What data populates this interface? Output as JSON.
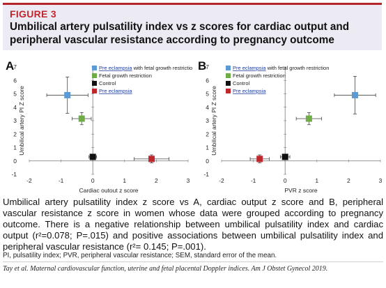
{
  "header": {
    "figure_label": "FIGURE 3",
    "title": "Umbilical artery pulsatility index vs z scores for cardiac output and peripheral vascular resistance according to pregnancy outcome"
  },
  "legend": [
    {
      "label": "Pre eclampsia with fetal growth restriction",
      "underlined_part": "Pre eclampsia",
      "rest": " with fetal growth restriction",
      "color": "#5b9bd5"
    },
    {
      "label": "Fetal growth restriction",
      "underlined_part": "",
      "rest": "Fetal growth restriction",
      "color": "#70ad47"
    },
    {
      "label": "Control",
      "underlined_part": "",
      "rest": "Control",
      "color": "#111111"
    },
    {
      "label": "Pre eclampsia",
      "underlined_part": "Pre eclampsia",
      "rest": "",
      "color": "#c0272d"
    }
  ],
  "chart_data": [
    {
      "panel": "A",
      "type": "scatter",
      "xlabel": "Cardiac outout z score",
      "ylabel": "Umbilical artery PI Z score",
      "xlim": [
        -2,
        3
      ],
      "ylim": [
        -1,
        7
      ],
      "xticks": [
        -2,
        -1,
        0,
        1,
        2,
        3
      ],
      "yticks": [
        -1,
        0,
        1,
        2,
        3,
        4,
        5,
        6,
        7
      ],
      "grid": false,
      "legend_position": "top-right",
      "series": [
        {
          "name": "Pre eclampsia with fetal growth restriction",
          "color": "#5b9bd5",
          "x": -0.8,
          "y": 4.9,
          "x_err": 0.65,
          "y_err": 1.35
        },
        {
          "name": "Fetal growth restriction",
          "color": "#70ad47",
          "x": -0.35,
          "y": 3.15,
          "x_err": 0.3,
          "y_err": 0.45
        },
        {
          "name": "Control",
          "color": "#111111",
          "x": 0.0,
          "y": 0.3,
          "x_err": 0.12,
          "y_err": 0.2
        },
        {
          "name": "Pre eclampsia",
          "color": "#c0272d",
          "x": 1.85,
          "y": 0.15,
          "x_err": 0.55,
          "y_err": 0.3
        }
      ]
    },
    {
      "panel": "B",
      "type": "scatter",
      "xlabel": "PVR z score",
      "ylabel": "Umbilical artery PI Z score",
      "xlim": [
        -2,
        3
      ],
      "ylim": [
        -1,
        7
      ],
      "xticks": [
        -2,
        -1,
        0,
        1,
        2,
        3
      ],
      "yticks": [
        -1,
        0,
        1,
        2,
        3,
        4,
        5,
        6,
        7
      ],
      "grid": false,
      "legend_position": "top-left",
      "series": [
        {
          "name": "Pre eclampsia with fetal growth restriction",
          "color": "#5b9bd5",
          "x": 2.2,
          "y": 4.9,
          "x_err": 0.65,
          "y_err": 1.4
        },
        {
          "name": "Fetal growth restriction",
          "color": "#70ad47",
          "x": 0.75,
          "y": 3.15,
          "x_err": 0.4,
          "y_err": 0.45
        },
        {
          "name": "Control",
          "color": "#111111",
          "x": 0.0,
          "y": 0.3,
          "x_err": 0.15,
          "y_err": 0.2
        },
        {
          "name": "Pre eclampsia",
          "color": "#c0272d",
          "x": -0.8,
          "y": 0.15,
          "x_err": 0.3,
          "y_err": 0.3
        }
      ]
    }
  ],
  "caption": {
    "text": "Umbilical artery pulsatility index z score vs A, cardiac output z score and B, peripheral vascular resistance z score in women whose data were grouped according to pregnancy outcome. There is a negative relationship between umbilical pulsatility index and cardiac output (r²=0.078; P=.015) and positive associations between umbilical pulsatility index and peripheral vascular resistance (r²= 0.145; P=.001).",
    "abbreviations": "PI, pulsatility index; PVR, peripheral vascular resistance; SEM, standard error of the mean.",
    "citation": "Tay et al. Maternal cardiovascular function, uterine and fetal placental Doppler indices. Am J Obstet Gynecol 2019."
  }
}
